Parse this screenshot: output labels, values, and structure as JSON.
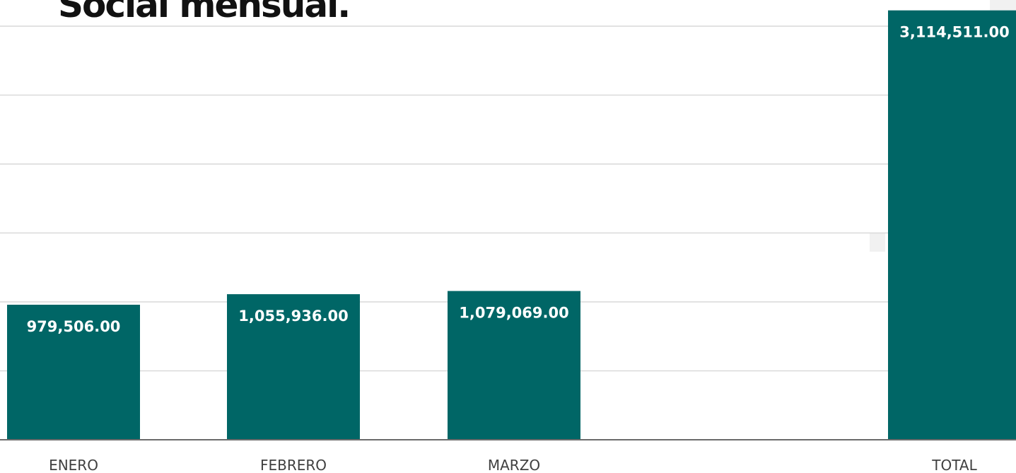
{
  "chart_data": {
    "type": "bar",
    "title": "Social mensual.",
    "categories": [
      "ENERO",
      "FEBRERO",
      "MARZO",
      "",
      "TOTAL"
    ],
    "values": [
      979506,
      1055936,
      1079069,
      null,
      3114511
    ],
    "data_labels": [
      "979,506.00",
      "1,055,936.00",
      "1,079,069.00",
      "",
      "3,114,511.00"
    ],
    "ylim": [
      0,
      3000000
    ],
    "grid": true,
    "legend": "none",
    "xlabel": "",
    "ylabel": "",
    "colors": {
      "bar": "#006666",
      "label": "#ffffff",
      "grid": "#d9d9d9"
    }
  }
}
